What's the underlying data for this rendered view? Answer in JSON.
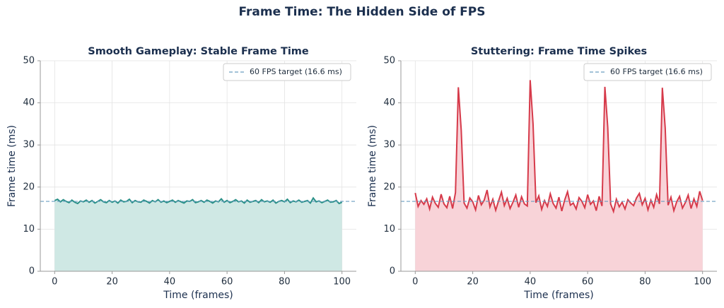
{
  "title": "Frame Time: The Hidden Side of FPS",
  "chart_data": [
    {
      "type": "line",
      "title": "Smooth Gameplay: Stable Frame Time",
      "xlabel": "Time (frames)",
      "ylabel": "Frame time (ms)",
      "color": "#2a9088",
      "fill": "#cfe8e4",
      "x": [
        0,
        1,
        2,
        3,
        4,
        5,
        6,
        7,
        8,
        9,
        10,
        11,
        12,
        13,
        14,
        15,
        16,
        17,
        18,
        19,
        20,
        21,
        22,
        23,
        24,
        25,
        26,
        27,
        28,
        29,
        30,
        31,
        32,
        33,
        34,
        35,
        36,
        37,
        38,
        39,
        40,
        41,
        42,
        43,
        44,
        45,
        46,
        47,
        48,
        49,
        50,
        51,
        52,
        53,
        54,
        55,
        56,
        57,
        58,
        59,
        60,
        61,
        62,
        63,
        64,
        65,
        66,
        67,
        68,
        69,
        70,
        71,
        72,
        73,
        74,
        75,
        76,
        77,
        78,
        79,
        80,
        81,
        82,
        83,
        84,
        85,
        86,
        87,
        88,
        89,
        90,
        91,
        92,
        93,
        94,
        95,
        96,
        97,
        98,
        99,
        100
      ],
      "values": [
        16.8,
        17.1,
        16.5,
        17.0,
        16.6,
        16.3,
        16.9,
        16.4,
        16.1,
        16.7,
        16.5,
        16.9,
        16.4,
        16.8,
        16.2,
        16.6,
        17.0,
        16.5,
        16.3,
        16.8,
        16.4,
        16.7,
        16.2,
        16.9,
        16.5,
        16.6,
        17.1,
        16.3,
        16.8,
        16.5,
        16.4,
        16.9,
        16.6,
        16.2,
        16.8,
        16.5,
        17.0,
        16.4,
        16.7,
        16.3,
        16.6,
        16.9,
        16.4,
        16.8,
        16.5,
        16.2,
        16.7,
        16.6,
        17.0,
        16.3,
        16.5,
        16.8,
        16.4,
        16.9,
        16.6,
        16.2,
        16.7,
        16.5,
        17.2,
        16.4,
        16.8,
        16.3,
        16.6,
        17.0,
        16.5,
        16.7,
        16.2,
        16.9,
        16.4,
        16.6,
        16.8,
        16.3,
        17.0,
        16.5,
        16.7,
        16.4,
        16.9,
        16.2,
        16.6,
        16.8,
        16.5,
        17.1,
        16.3,
        16.7,
        16.5,
        16.9,
        16.4,
        16.6,
        16.8,
        16.2,
        17.4,
        16.5,
        16.7,
        16.3,
        16.6,
        16.9,
        16.4,
        16.5,
        16.8,
        16.1,
        16.4
      ],
      "reference": {
        "value": 16.6,
        "label": "60 FPS target (16.6 ms)",
        "color": "#6a9ec0"
      },
      "xlim": [
        -5,
        105
      ],
      "ylim": [
        0,
        50
      ],
      "xticks": [
        0,
        20,
        40,
        60,
        80,
        100
      ],
      "yticks": [
        0,
        10,
        20,
        30,
        40,
        50
      ],
      "grid": true,
      "legend": "upper right"
    },
    {
      "type": "line",
      "title": "Stuttering: Frame Time Spikes",
      "xlabel": "Time (frames)",
      "ylabel": "Frame time (ms)",
      "color": "#d63a4a",
      "fill": "#f8d3d8",
      "x": [
        0,
        1,
        2,
        3,
        4,
        5,
        6,
        7,
        8,
        9,
        10,
        11,
        12,
        13,
        14,
        15,
        16,
        17,
        18,
        19,
        20,
        21,
        22,
        23,
        24,
        25,
        26,
        27,
        28,
        29,
        30,
        31,
        32,
        33,
        34,
        35,
        36,
        37,
        38,
        39,
        40,
        41,
        42,
        43,
        44,
        45,
        46,
        47,
        48,
        49,
        50,
        51,
        52,
        53,
        54,
        55,
        56,
        57,
        58,
        59,
        60,
        61,
        62,
        63,
        64,
        65,
        66,
        67,
        68,
        69,
        70,
        71,
        72,
        73,
        74,
        75,
        76,
        77,
        78,
        79,
        80,
        81,
        82,
        83,
        84,
        85,
        86,
        87,
        88,
        89,
        90,
        91,
        92,
        93,
        94,
        95,
        96,
        97,
        98,
        99,
        100
      ],
      "values": [
        18.6,
        15.4,
        16.8,
        15.9,
        17.2,
        14.8,
        17.6,
        16.1,
        15.2,
        18.3,
        16.0,
        15.1,
        17.8,
        14.9,
        18.7,
        43.7,
        33.5,
        16.2,
        15.0,
        17.4,
        16.5,
        14.6,
        18.0,
        15.8,
        16.9,
        19.3,
        15.3,
        17.1,
        14.5,
        16.7,
        18.8,
        15.6,
        17.3,
        14.9,
        16.4,
        18.1,
        15.2,
        17.7,
        16.0,
        15.5,
        45.4,
        35.0,
        16.3,
        17.9,
        14.7,
        16.8,
        15.4,
        18.4,
        16.1,
        15.0,
        17.6,
        14.3,
        16.9,
        18.9,
        15.7,
        16.2,
        14.8,
        17.5,
        16.6,
        15.1,
        18.2,
        15.9,
        16.7,
        14.4,
        17.8,
        15.5,
        43.8,
        34.2,
        16.0,
        14.2,
        17.1,
        15.3,
        16.4,
        14.8,
        17.0,
        16.2,
        15.6,
        17.4,
        18.5,
        15.8,
        17.3,
        14.6,
        16.9,
        15.2,
        18.2,
        16.0,
        43.6,
        34.0,
        15.7,
        17.6,
        14.4,
        16.5,
        17.8,
        15.0,
        16.3,
        18.1,
        14.9,
        17.2,
        15.4,
        19.0,
        16.8
      ],
      "reference": {
        "value": 16.6,
        "label": "60 FPS target (16.6 ms)",
        "color": "#6a9ec0"
      },
      "xlim": [
        -5,
        105
      ],
      "ylim": [
        0,
        50
      ],
      "xticks": [
        0,
        20,
        40,
        60,
        80,
        100
      ],
      "yticks": [
        0,
        10,
        20,
        30,
        40,
        50
      ],
      "grid": true,
      "legend": "upper right"
    }
  ]
}
